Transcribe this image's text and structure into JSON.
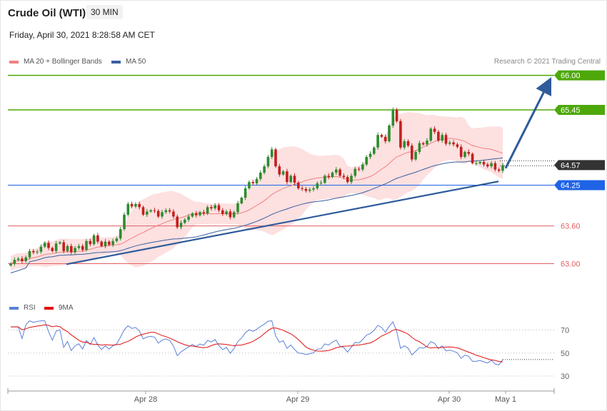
{
  "header": {
    "title": "Crude Oil (WTI)",
    "timeframe": "30 MIN",
    "datetime": "Friday, April 30, 2021 8:28:58 AM CET"
  },
  "legend": {
    "ma20_label": "MA 20 + Bollinger Bands",
    "ma50_label": "MA 50",
    "rsi_label": "RSI",
    "ma9_label": "9MA",
    "credit": "Research © 2021 Trading Central"
  },
  "colors": {
    "up": "#2e8b2e",
    "down": "#c41e1e",
    "band": "#fde0e0",
    "ma20": "#f08080",
    "ma50": "#3a5fa0",
    "trend": "#2f5b9a",
    "resistance": "#4ea80a",
    "pivot": "#1f63e6",
    "support": "#e06060",
    "last": "#333333",
    "rsi": "#5b80d8",
    "rsi_ma": "#e01010"
  },
  "chart_data": [
    {
      "type": "candlestick",
      "title": "Crude Oil (WTI)",
      "timeframe": "30 MIN",
      "x_ticks": [
        "Apr 28",
        "Apr 29",
        "Apr 30",
        "May 1"
      ],
      "y_range": [
        62.05,
        66.12
      ],
      "close": [
        63.0,
        63.06,
        63.08,
        63.04,
        63.1,
        63.2,
        63.18,
        63.19,
        63.27,
        63.33,
        63.25,
        63.2,
        63.32,
        63.34,
        63.2,
        63.28,
        63.18,
        63.25,
        63.28,
        63.22,
        63.36,
        63.31,
        63.45,
        63.35,
        63.28,
        63.35,
        63.3,
        63.36,
        63.4,
        63.55,
        63.78,
        63.95,
        63.91,
        63.95,
        63.9,
        63.78,
        63.83,
        63.85,
        63.84,
        63.75,
        63.82,
        63.85,
        63.83,
        63.75,
        63.58,
        63.65,
        63.7,
        63.75,
        63.8,
        63.77,
        63.82,
        63.8,
        63.9,
        63.88,
        63.93,
        63.85,
        63.79,
        63.83,
        63.74,
        63.82,
        63.96,
        64.05,
        64.2,
        64.3,
        64.28,
        64.35,
        64.45,
        64.55,
        64.7,
        64.82,
        64.55,
        64.42,
        64.47,
        64.3,
        64.4,
        64.29,
        64.2,
        64.19,
        64.16,
        64.18,
        64.2,
        64.28,
        64.29,
        64.4,
        64.38,
        64.45,
        64.5,
        64.4,
        64.38,
        64.3,
        64.4,
        64.51,
        64.5,
        64.58,
        64.7,
        64.75,
        64.85,
        65.05,
        65.02,
        64.95,
        65.2,
        65.45,
        65.27,
        64.85,
        64.95,
        64.88,
        64.66,
        64.78,
        64.92,
        64.9,
        64.96,
        65.15,
        65.1,
        64.96,
        65.05,
        64.91,
        64.93,
        64.9,
        64.86,
        64.7,
        64.78,
        64.75,
        64.6,
        64.6,
        64.62,
        64.58,
        64.55,
        64.6,
        64.5,
        64.48,
        64.57
      ],
      "support_resistance": [
        {
          "label": "66.00",
          "value": 66.0,
          "kind": "resistance"
        },
        {
          "label": "65.45",
          "value": 65.45,
          "kind": "resistance"
        },
        {
          "label": "64.57",
          "value": 64.57,
          "kind": "last"
        },
        {
          "label": "64.25",
          "value": 64.25,
          "kind": "pivot"
        },
        {
          "label": "63.60",
          "value": 63.6,
          "kind": "support"
        },
        {
          "label": "63.00",
          "value": 63.0,
          "kind": "support"
        }
      ],
      "series": [
        {
          "name": "MA 20 + Bollinger Bands"
        },
        {
          "name": "MA 50"
        }
      ]
    },
    {
      "type": "line",
      "series": [
        {
          "name": "RSI"
        },
        {
          "name": "9MA"
        }
      ],
      "y_ticks": [
        "70",
        "50",
        "30"
      ],
      "y_range": [
        20,
        80
      ]
    }
  ]
}
